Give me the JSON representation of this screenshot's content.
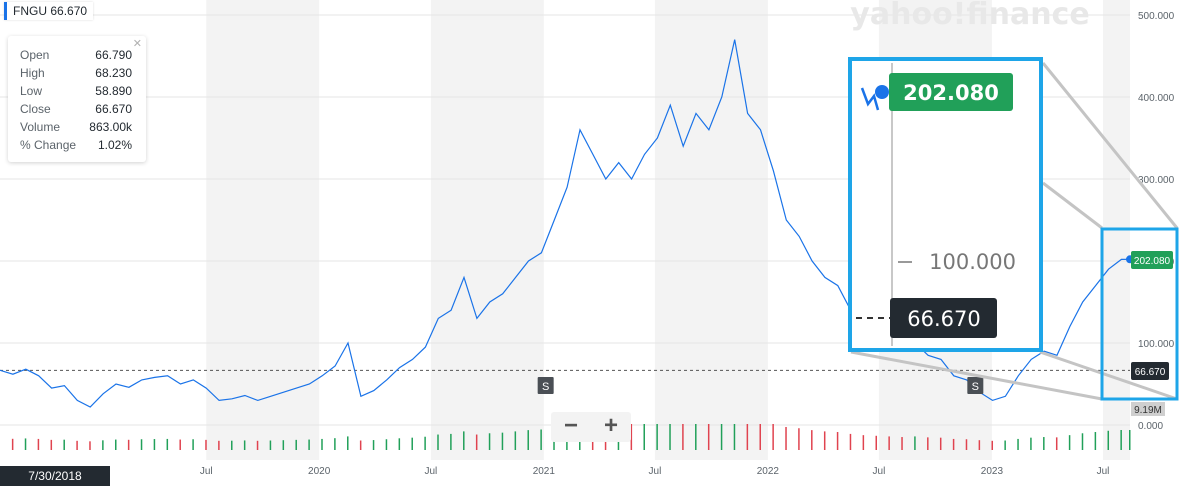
{
  "symbol": {
    "ticker": "FNGU",
    "price": "66.670"
  },
  "ohlc": {
    "rows": [
      {
        "label": "Open",
        "value": "66.790"
      },
      {
        "label": "High",
        "value": "68.230"
      },
      {
        "label": "Low",
        "value": "58.890"
      },
      {
        "label": "Close",
        "value": "66.670"
      },
      {
        "label": "Volume",
        "value": "863.00k"
      },
      {
        "label": "% Change",
        "value": "1.02%"
      }
    ]
  },
  "watermark": "yahoo!finance",
  "cursor_date": "7/30/2018",
  "zoom": {
    "minus": "−",
    "plus": "+"
  },
  "colors": {
    "line": "#1a73e8",
    "up": "#21a059",
    "down": "#e0434f",
    "band": "#f3f3f3",
    "grid": "#e6e6e6",
    "label_dark": "#232a31"
  },
  "chart_data": {
    "type": "line",
    "title": "",
    "ticker": "FNGU",
    "x_range": [
      "2018-07-30",
      "2023-08-14"
    ],
    "ylim": [
      0,
      500
    ],
    "y_ticks": [
      "500.000",
      "400.000",
      "300.000",
      "200.000",
      "100.000",
      "0.000"
    ],
    "x_ticks": [
      {
        "date": "2019-07-01",
        "label": "Jul"
      },
      {
        "date": "2020-01-01",
        "label": "2020"
      },
      {
        "date": "2020-07-01",
        "label": "Jul"
      },
      {
        "date": "2021-01-01",
        "label": "2021"
      },
      {
        "date": "2021-07-01",
        "label": "Jul"
      },
      {
        "date": "2022-01-01",
        "label": "2022"
      },
      {
        "date": "2022-07-01",
        "label": "Jul"
      },
      {
        "date": "2023-01-01",
        "label": "2023"
      },
      {
        "date": "2023-07-01",
        "label": "Jul"
      }
    ],
    "grid": true,
    "last_price_label": "202.080",
    "reference_price_label": "66.670",
    "reference_price": 66.67,
    "volume_label": "9.19M",
    "split_markers": [
      {
        "date": "2021-01-04",
        "label": "S"
      },
      {
        "date": "2022-12-05",
        "label": "S"
      }
    ],
    "series": [
      {
        "x": [
          "2018-07-30",
          "2018-08-20",
          "2018-09-10",
          "2018-10-01",
          "2018-10-22",
          "2018-11-12",
          "2018-12-03",
          "2018-12-24",
          "2019-01-14",
          "2019-02-04",
          "2019-02-25",
          "2019-03-18",
          "2019-04-08",
          "2019-04-29",
          "2019-05-20",
          "2019-06-10",
          "2019-07-01",
          "2019-07-22",
          "2019-08-12",
          "2019-09-02",
          "2019-09-23",
          "2019-10-14",
          "2019-11-04",
          "2019-11-25",
          "2019-12-16",
          "2020-01-06",
          "2020-01-27",
          "2020-02-17",
          "2020-03-09",
          "2020-03-30",
          "2020-04-20",
          "2020-05-11",
          "2020-06-01",
          "2020-06-22",
          "2020-07-13",
          "2020-08-03",
          "2020-08-24",
          "2020-09-14",
          "2020-10-05",
          "2020-10-26",
          "2020-11-16",
          "2020-12-07",
          "2020-12-28",
          "2021-01-18",
          "2021-02-08",
          "2021-03-01",
          "2021-03-22",
          "2021-04-12",
          "2021-05-03",
          "2021-05-24",
          "2021-06-14",
          "2021-07-05",
          "2021-07-26",
          "2021-08-16",
          "2021-09-06",
          "2021-09-27",
          "2021-10-18",
          "2021-11-08",
          "2021-11-29",
          "2021-12-20",
          "2022-01-10",
          "2022-01-31",
          "2022-02-21",
          "2022-03-14",
          "2022-04-04",
          "2022-04-25",
          "2022-05-16",
          "2022-06-06",
          "2022-06-27",
          "2022-07-18",
          "2022-08-08",
          "2022-08-29",
          "2022-09-19",
          "2022-10-10",
          "2022-10-31",
          "2022-11-21",
          "2022-12-12",
          "2023-01-02",
          "2023-01-23",
          "2023-02-13",
          "2023-03-06",
          "2023-03-27",
          "2023-04-17",
          "2023-05-08",
          "2023-05-29",
          "2023-06-19",
          "2023-07-10",
          "2023-07-31",
          "2023-08-14"
        ],
        "values": [
          66.7,
          62,
          68,
          60,
          45,
          48,
          30,
          22,
          38,
          50,
          46,
          55,
          58,
          60,
          50,
          55,
          45,
          30,
          32,
          36,
          30,
          35,
          40,
          45,
          50,
          60,
          72,
          100,
          35,
          42,
          55,
          70,
          80,
          95,
          130,
          140,
          180,
          130,
          150,
          160,
          180,
          200,
          210,
          250,
          290,
          360,
          330,
          300,
          320,
          300,
          330,
          350,
          390,
          340,
          380,
          360,
          400,
          470,
          380,
          360,
          310,
          250,
          230,
          200,
          180,
          170,
          140,
          120,
          110,
          100,
          90,
          100,
          85,
          80,
          60,
          55,
          40,
          30,
          35,
          60,
          80,
          90,
          85,
          120,
          150,
          170,
          190,
          202,
          202.08
        ]
      }
    ]
  }
}
